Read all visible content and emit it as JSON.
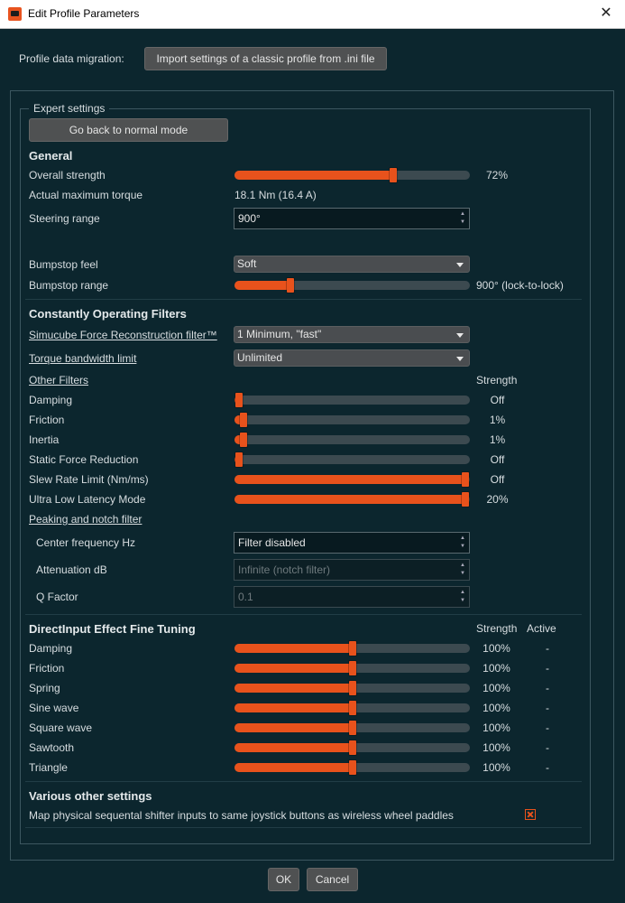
{
  "window": {
    "title": "Edit Profile Parameters",
    "close_glyph": "✕"
  },
  "migration": {
    "label": "Profile data migration:",
    "import_button": "Import settings of a classic profile from .ini file"
  },
  "expert": {
    "group_label": "Expert settings",
    "back_button": "Go back to normal mode"
  },
  "general": {
    "title": "General",
    "overall_strength": {
      "label": "Overall strength",
      "value": "72%",
      "level": 0.68
    },
    "max_torque": {
      "label": "Actual maximum torque",
      "value": "18.1 Nm (16.4 A)"
    },
    "steering_range": {
      "label": "Steering range",
      "value": "900°"
    },
    "bumpstop_feel": {
      "label": "Bumpstop feel",
      "value": "Soft"
    },
    "bumpstop_range": {
      "label": "Bumpstop range",
      "value": "900° (lock-to-lock)",
      "level": 0.227
    }
  },
  "filters": {
    "title": "Constantly Operating Filters",
    "reconstruction": {
      "label": "Simucube Force Reconstruction filter™",
      "value": "1 Minimum, \"fast\""
    },
    "torque_bandwidth": {
      "label": "Torque bandwidth limit",
      "value": "Unlimited"
    },
    "other_filters_label": "Other Filters",
    "strength_header": "Strength",
    "items": [
      {
        "label": "Damping",
        "value": "Off",
        "level": 0.0
      },
      {
        "label": "Friction",
        "value": "1%",
        "level": 0.02
      },
      {
        "label": "Inertia",
        "value": "1%",
        "level": 0.02
      },
      {
        "label": "Static Force Reduction",
        "value": "Off",
        "level": 0.0
      },
      {
        "label": "Slew Rate Limit (Nm/ms)",
        "value": "Off",
        "level": 1.0
      },
      {
        "label": "Ultra Low Latency Mode",
        "value": "20%",
        "level": 1.0
      }
    ],
    "peaking_label": "Peaking and notch filter",
    "center_frequency": {
      "label": "Center frequency Hz",
      "value": "Filter disabled"
    },
    "attenuation": {
      "label": "Attenuation dB",
      "value": "Infinite (notch filter)"
    },
    "q_factor": {
      "label": "Q Factor",
      "value": "0.1"
    }
  },
  "directinput": {
    "title": "DirectInput Effect Fine Tuning",
    "strength_header": "Strength",
    "active_header": "Active",
    "items": [
      {
        "label": "Damping",
        "value": "100%",
        "active": "-",
        "level": 0.5
      },
      {
        "label": "Friction",
        "value": "100%",
        "active": "-",
        "level": 0.5
      },
      {
        "label": "Spring",
        "value": "100%",
        "active": "-",
        "level": 0.5
      },
      {
        "label": "Sine wave",
        "value": "100%",
        "active": "-",
        "level": 0.5
      },
      {
        "label": "Square wave",
        "value": "100%",
        "active": "-",
        "level": 0.5
      },
      {
        "label": "Sawtooth",
        "value": "100%",
        "active": "-",
        "level": 0.5
      },
      {
        "label": "Triangle",
        "value": "100%",
        "active": "-",
        "level": 0.5
      }
    ]
  },
  "various": {
    "title": "Various other settings",
    "shifter_label": "Map physical sequental shifter inputs to same joystick buttons as wireless wheel paddles",
    "shifter_checked": true
  },
  "footer": {
    "ok": "OK",
    "cancel": "Cancel"
  },
  "colors": {
    "accent": "#e8521c",
    "background": "#0c262e",
    "track": "#3c4a50"
  }
}
